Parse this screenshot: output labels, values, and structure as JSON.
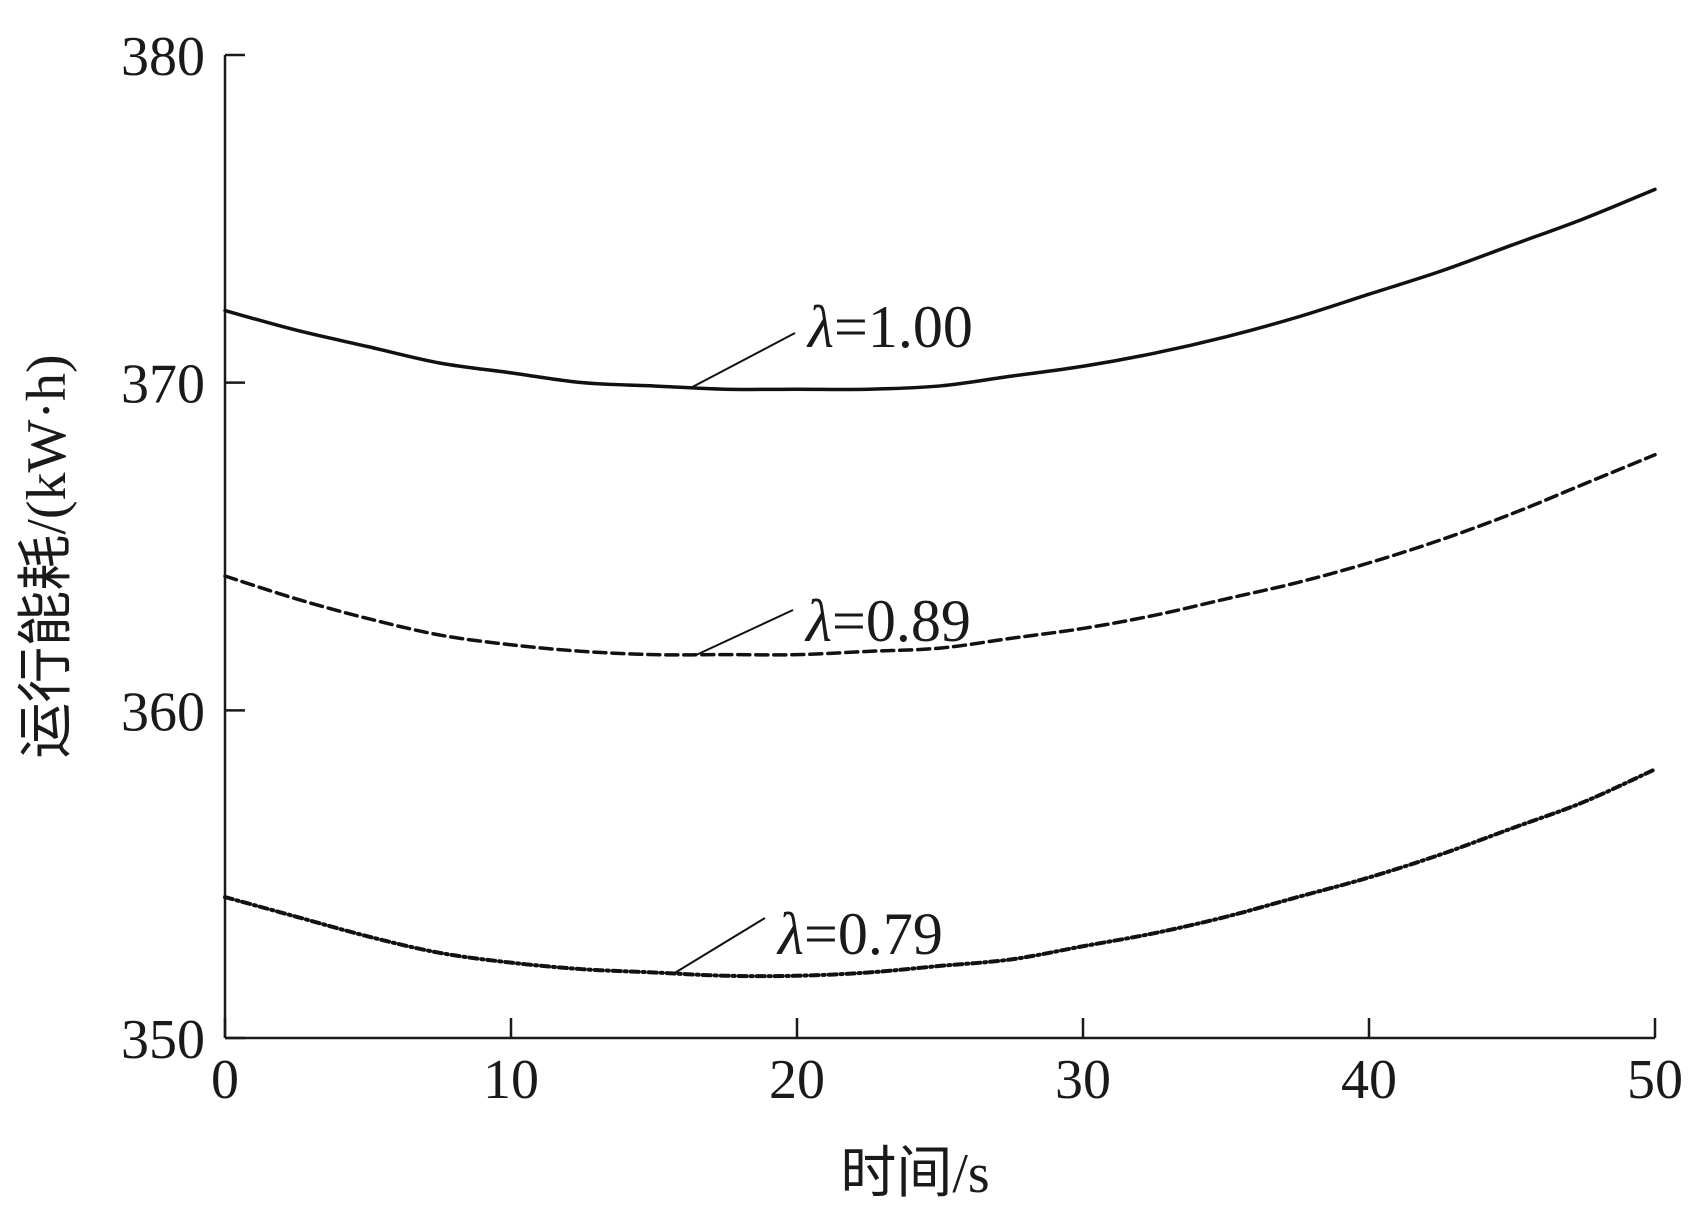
{
  "chart_data": {
    "type": "line",
    "title": "",
    "xlabel": "时间/s",
    "ylabel": "运行能耗/(kW·h)",
    "xlim": [
      0,
      50
    ],
    "ylim": [
      350,
      380
    ],
    "x_ticks": [
      0,
      10,
      20,
      30,
      40,
      50
    ],
    "y_ticks": [
      350,
      360,
      370,
      380
    ],
    "grid": false,
    "legend": "none",
    "x": [
      0,
      2.5,
      5,
      7.5,
      10,
      12.5,
      15,
      17.5,
      20,
      22.5,
      25,
      27.5,
      30,
      32.5,
      35,
      37.5,
      40,
      42.5,
      45,
      47.5,
      50
    ],
    "series": [
      {
        "name": "λ=1.00",
        "style": "solid",
        "values": [
          372.2,
          371.6,
          371.1,
          370.6,
          370.3,
          370.0,
          369.9,
          369.8,
          369.8,
          369.8,
          369.9,
          370.2,
          370.5,
          370.9,
          371.4,
          372.0,
          372.7,
          373.4,
          374.2,
          375.0,
          375.9
        ],
        "label": {
          "prefix": "λ",
          "text": "=1.00"
        }
      },
      {
        "name": "λ=0.89",
        "style": "dashed",
        "values": [
          364.1,
          363.4,
          362.8,
          362.3,
          362.0,
          361.8,
          361.7,
          361.7,
          361.7,
          361.8,
          361.9,
          362.2,
          362.5,
          362.9,
          363.4,
          363.9,
          364.5,
          365.2,
          366.0,
          366.9,
          367.8
        ],
        "label": {
          "prefix": "λ",
          "text": "=0.89"
        }
      },
      {
        "name": "λ=0.79",
        "style": "dashdot",
        "values": [
          354.3,
          353.7,
          353.1,
          352.6,
          352.3,
          352.1,
          352.0,
          351.9,
          351.9,
          352.0,
          352.2,
          352.4,
          352.8,
          353.2,
          353.7,
          354.3,
          354.9,
          355.6,
          356.4,
          357.2,
          358.2
        ],
        "label": {
          "prefix": "λ",
          "text": "=0.79"
        }
      }
    ]
  }
}
